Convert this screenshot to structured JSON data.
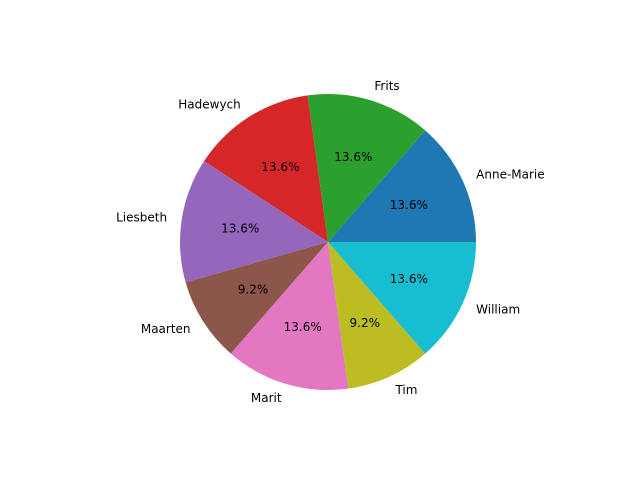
{
  "chart_data": {
    "type": "pie",
    "title": "",
    "labels": [
      "Anne-Marie",
      "Frits",
      "Hadewych",
      "Liesbeth",
      "Maarten",
      "Marit",
      "Tim",
      "William"
    ],
    "values": [
      13.6,
      13.6,
      13.6,
      13.6,
      9.2,
      13.6,
      9.2,
      13.6
    ],
    "percent_labels": [
      "13.6%",
      "13.6%",
      "13.6%",
      "13.6%",
      "9.2%",
      "13.6%",
      "9.2%",
      "13.6%"
    ],
    "colors": [
      "#1f77b4",
      "#2ca02c",
      "#d62728",
      "#9467bd",
      "#8c564b",
      "#e377c2",
      "#bcbd22",
      "#17becf"
    ],
    "start_angle_deg": 0,
    "direction": "counterclockwise",
    "legend": "none"
  }
}
